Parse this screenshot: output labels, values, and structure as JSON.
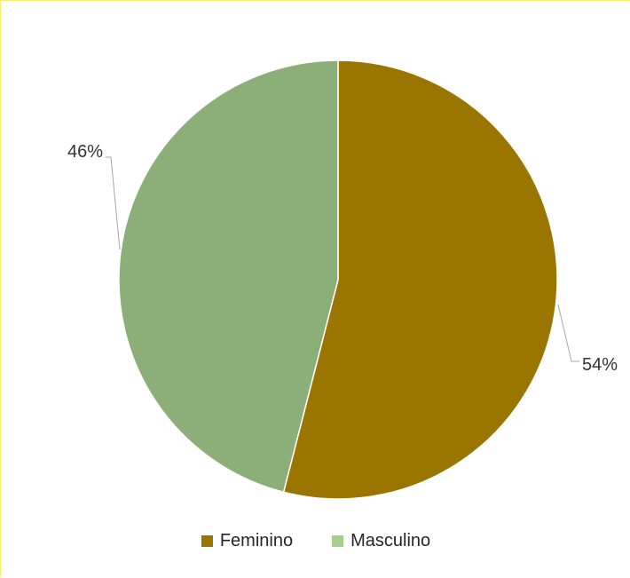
{
  "chart_data": {
    "type": "pie",
    "categories": [
      "Feminino",
      "Masculino"
    ],
    "values": [
      54,
      46
    ],
    "data_labels": [
      "54%",
      "46%"
    ],
    "colors": [
      "#9a7500",
      "#8cae78"
    ],
    "legend_colors": [
      "#9a7500",
      "#a6cf8c"
    ],
    "start_angle": "12 o'clock",
    "direction": "clockwise",
    "legend_position": "bottom"
  }
}
